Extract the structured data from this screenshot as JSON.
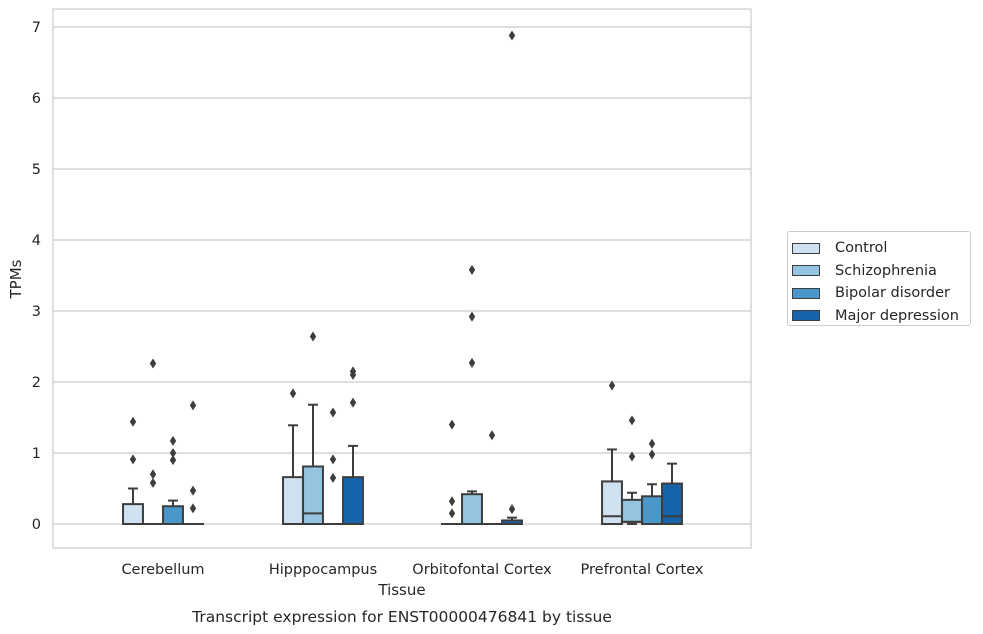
{
  "chart_data": {
    "type": "box",
    "title": "Transcript expression for ENST00000476841 by tissue",
    "xlabel": "Tissue",
    "ylabel": "TPMs",
    "ylim": [
      -0.33,
      7.25
    ],
    "yticks": [
      0,
      1,
      2,
      3,
      4,
      5,
      6,
      7
    ],
    "grid": "horizontal",
    "legend_position": "right",
    "categories": [
      "Cerebellum",
      "Hipppocampus",
      "Orbitofontal Cortex",
      "Prefrontal Cortex"
    ],
    "series": [
      {
        "name": "Control",
        "color": "#d0e1f2",
        "boxes": [
          {
            "q1": 0,
            "median": 0,
            "q3": 0.28,
            "whisker_low": 0,
            "whisker_high": 0.5,
            "outliers": [
              0.91,
              1.44
            ]
          },
          {
            "q1": 0,
            "median": 0,
            "q3": 0.66,
            "whisker_low": 0,
            "whisker_high": 1.39,
            "outliers": [
              1.84
            ]
          },
          {
            "q1": 0,
            "median": 0,
            "q3": 0,
            "whisker_low": 0,
            "whisker_high": 0,
            "outliers": [
              0.15,
              0.32,
              1.4
            ]
          },
          {
            "q1": 0,
            "median": 0.11,
            "q3": 0.6,
            "whisker_low": 0,
            "whisker_high": 1.05,
            "outliers": [
              1.95
            ]
          }
        ]
      },
      {
        "name": "Schizophrenia",
        "color": "#94c4df",
        "boxes": [
          {
            "q1": 0,
            "median": 0,
            "q3": 0,
            "whisker_low": 0,
            "whisker_high": 0,
            "outliers": [
              0.58,
              0.7,
              2.26
            ]
          },
          {
            "q1": 0,
            "median": 0.15,
            "q3": 0.81,
            "whisker_low": 0,
            "whisker_high": 1.68,
            "outliers": [
              2.64
            ]
          },
          {
            "q1": 0,
            "median": 0,
            "q3": 0.42,
            "whisker_low": 0,
            "whisker_high": 0.46,
            "outliers": [
              2.27,
              2.92,
              3.58
            ]
          },
          {
            "q1": 0.03,
            "median": 0.03,
            "q3": 0.34,
            "whisker_low": 0,
            "whisker_high": 0.44,
            "outliers": [
              0.95,
              1.46
            ]
          }
        ]
      },
      {
        "name": "Bipolar disorder",
        "color": "#4a98c9",
        "boxes": [
          {
            "q1": 0,
            "median": 0,
            "q3": 0.25,
            "whisker_low": 0,
            "whisker_high": 0.33,
            "outliers": [
              0.9,
              1.0,
              1.17
            ]
          },
          {
            "q1": 0,
            "median": 0,
            "q3": 0,
            "whisker_low": 0,
            "whisker_high": 0,
            "outliers": [
              0.65,
              0.91,
              1.57
            ]
          },
          {
            "q1": 0,
            "median": 0,
            "q3": 0,
            "whisker_low": 0,
            "whisker_high": 0,
            "outliers": [
              1.25
            ]
          },
          {
            "q1": 0,
            "median": 0,
            "q3": 0.39,
            "whisker_low": 0,
            "whisker_high": 0.56,
            "outliers": [
              0.98,
              1.13
            ]
          }
        ]
      },
      {
        "name": "Major depression",
        "color": "#1764ab",
        "boxes": [
          {
            "q1": 0,
            "median": 0,
            "q3": 0,
            "whisker_low": 0,
            "whisker_high": 0,
            "outliers": [
              0.22,
              0.47,
              1.67
            ]
          },
          {
            "q1": 0,
            "median": 0,
            "q3": 0.66,
            "whisker_low": 0,
            "whisker_high": 1.1,
            "outliers": [
              1.71,
              2.1,
              2.15
            ]
          },
          {
            "q1": 0,
            "median": 0,
            "q3": 0.05,
            "whisker_low": 0,
            "whisker_high": 0.09,
            "outliers": [
              0.21,
              6.88
            ]
          },
          {
            "q1": 0,
            "median": 0.11,
            "q3": 0.57,
            "whisker_low": 0,
            "whisker_high": 0.85,
            "outliers": []
          }
        ]
      }
    ]
  }
}
